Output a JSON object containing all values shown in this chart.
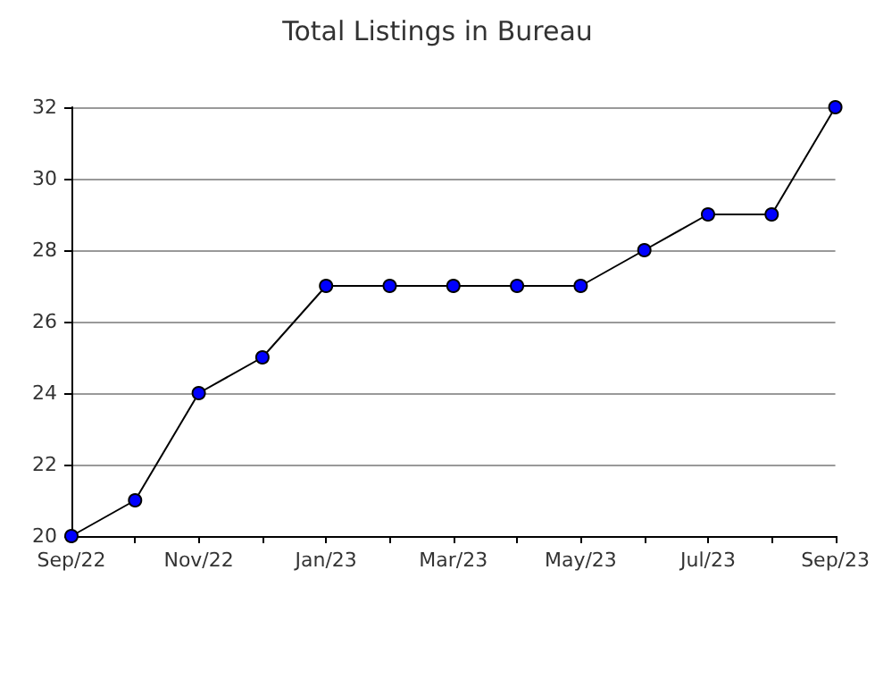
{
  "chart_data": {
    "type": "line",
    "title": "Total Listings in Bureau",
    "categories": [
      "Sep/22",
      null,
      "Nov/22",
      null,
      "Jan/23",
      null,
      "Mar/23",
      null,
      "May/23",
      null,
      "Jul/23",
      null,
      "Sep/23"
    ],
    "series": [
      {
        "color": "#0000ff",
        "values": [
          20,
          21,
          24,
          25,
          27,
          27,
          27,
          27,
          27,
          28,
          29,
          29,
          32
        ]
      }
    ],
    "ylim": [
      20,
      32
    ],
    "yticks": [
      20,
      22,
      24,
      26,
      28,
      30,
      32
    ],
    "grid": "y",
    "marker": "circle",
    "line_style": "solid"
  }
}
